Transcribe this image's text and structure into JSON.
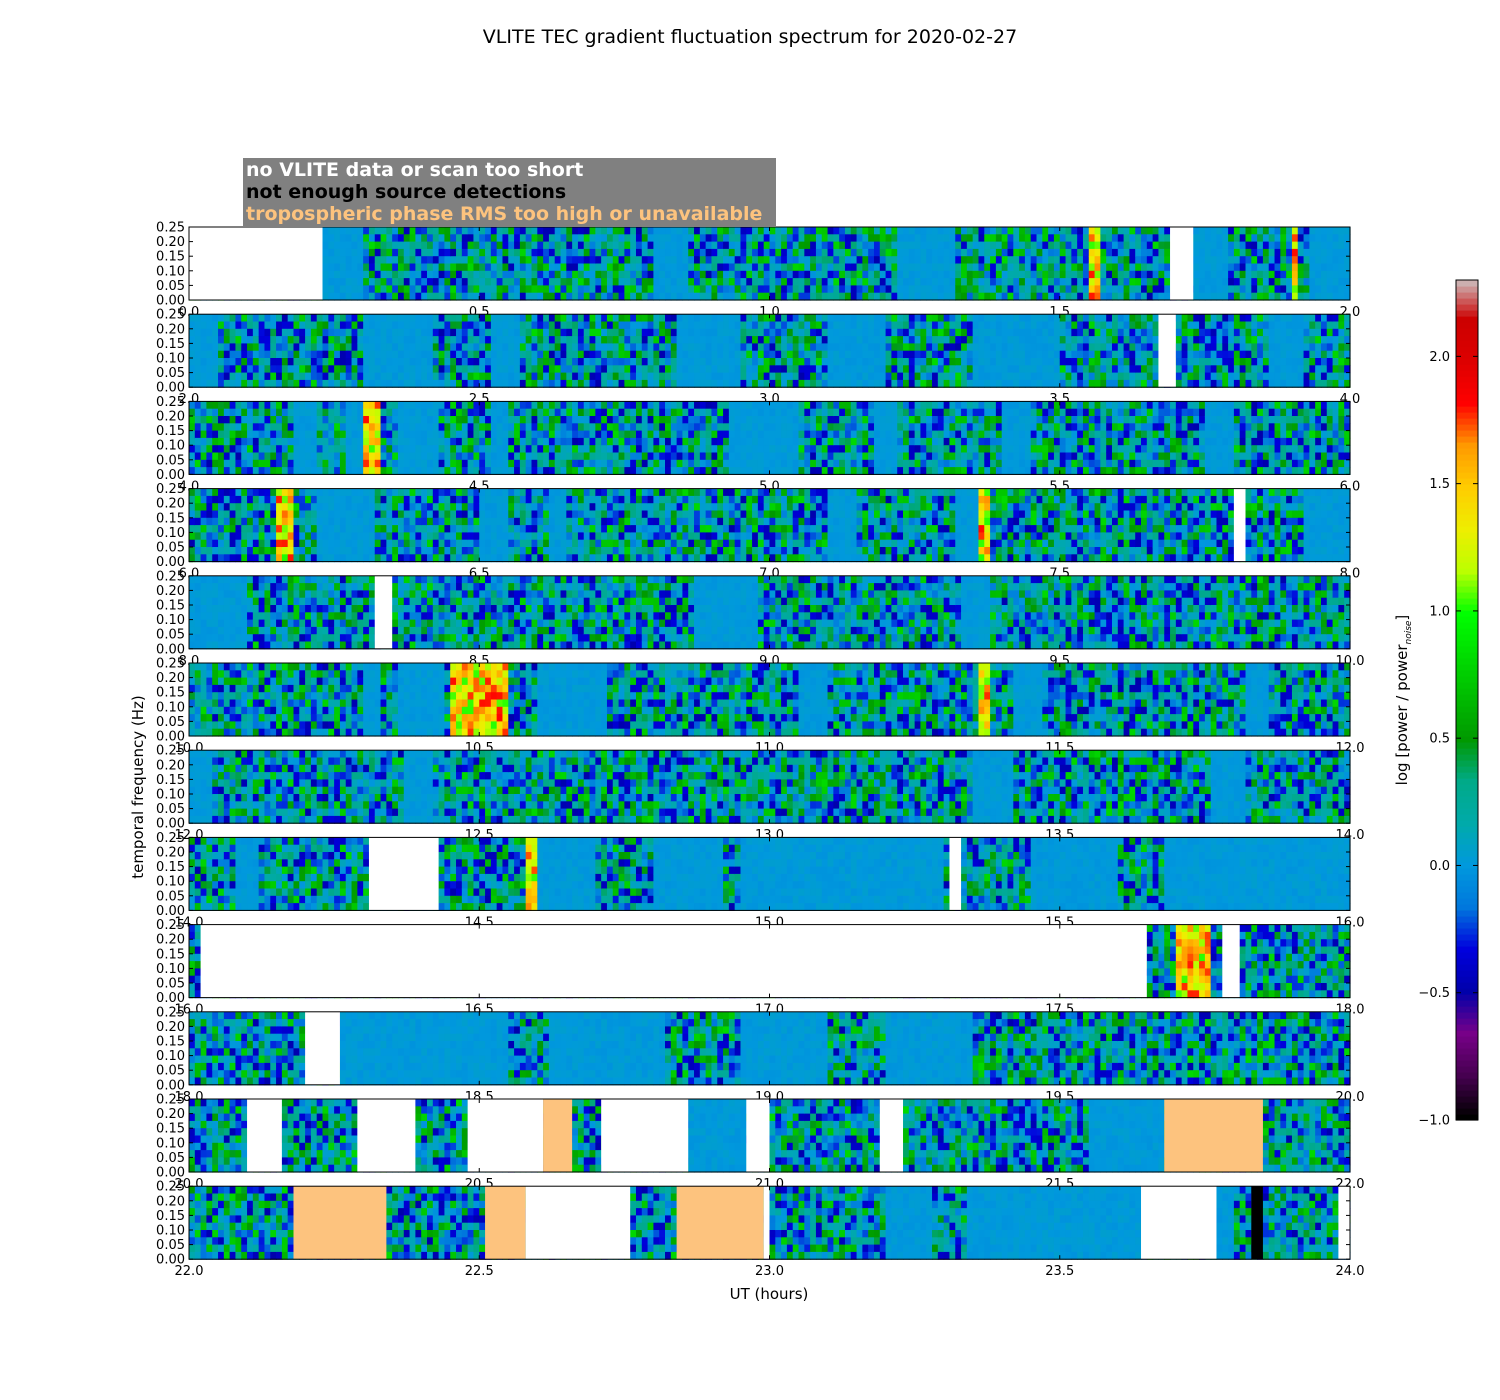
{
  "chart_data": {
    "type": "heatmap",
    "title": "VLITE TEC gradient fluctuation spectrum for 2020-02-27",
    "xlabel": "UT (hours)",
    "ylabel": "temporal frequency (Hz)",
    "colorbar_label": "log [power / power",
    "colorbar_label_sub": "noise",
    "colorbar_label_end": "]",
    "colorbar_ticks": [
      "-1.0",
      "-0.5",
      "0.0",
      "0.5",
      "1.0",
      "1.5",
      "2.0"
    ],
    "colorbar_range": [
      -1.0,
      2.3
    ],
    "colormap": "nipy_spectral",
    "y_tick_labels": [
      "0.00",
      "0.05",
      "0.10",
      "0.15",
      "0.20",
      "0.25"
    ],
    "ylim": [
      0,
      0.25
    ],
    "legend": [
      {
        "text": "no VLITE data or scan too short",
        "color": "#ffffff"
      },
      {
        "text": "not enough source detections",
        "color": "#000000"
      },
      {
        "text": "tropospheric phase RMS too high or unavailable",
        "color": "#fdc37e"
      }
    ],
    "legend_background": "#808080",
    "flag_colors": {
      "nodata": "#ffffff",
      "nodetect": "#000000",
      "tropo": "#fdc37e",
      "quiet": "#0a96d2"
    },
    "panels": [
      {
        "xlim": [
          0,
          2
        ],
        "x_tick_labels": [
          "0.0",
          "0.5",
          "1.0",
          "1.5",
          "2.0"
        ],
        "gaps": [
          {
            "start": 0.0,
            "end": 0.23,
            "flag": "nodata"
          },
          {
            "start": 1.69,
            "end": 1.73,
            "flag": "nodata"
          }
        ],
        "quiet": [
          [
            0.23,
            0.3
          ],
          [
            0.8,
            0.86
          ],
          [
            1.22,
            1.32
          ],
          [
            1.73,
            1.79
          ],
          [
            1.93,
            2.0
          ]
        ],
        "hot": [
          [
            1.55,
            1.57
          ],
          [
            1.9,
            1.91
          ]
        ]
      },
      {
        "xlim": [
          2,
          4
        ],
        "x_tick_labels": [
          "2.0",
          "2.5",
          "3.0",
          "3.5",
          "4.0"
        ],
        "gaps": [
          {
            "start": 3.67,
            "end": 3.7,
            "flag": "nodata"
          }
        ],
        "quiet": [
          [
            2.0,
            2.05
          ],
          [
            2.3,
            2.42
          ],
          [
            2.52,
            2.57
          ],
          [
            2.84,
            2.95
          ],
          [
            3.1,
            3.2
          ],
          [
            3.35,
            3.5
          ],
          [
            3.86,
            3.92
          ]
        ],
        "hot": []
      },
      {
        "xlim": [
          4,
          6
        ],
        "x_tick_labels": [
          "4.0",
          "4.5",
          "5.0",
          "5.5",
          "6.0"
        ],
        "gaps": [],
        "quiet": [
          [
            4.18,
            4.22
          ],
          [
            4.27,
            4.3
          ],
          [
            4.36,
            4.43
          ],
          [
            4.52,
            4.55
          ],
          [
            4.93,
            5.05
          ],
          [
            5.18,
            5.22
          ],
          [
            5.4,
            5.45
          ],
          [
            5.75,
            5.8
          ]
        ],
        "hot": [
          [
            4.3,
            4.33
          ]
        ]
      },
      {
        "xlim": [
          6,
          8
        ],
        "x_tick_labels": [
          "6.0",
          "6.5",
          "7.0",
          "7.5",
          "8.0"
        ],
        "gaps": [
          {
            "start": 7.8,
            "end": 7.82,
            "flag": "nodata"
          }
        ],
        "quiet": [
          [
            6.22,
            6.32
          ],
          [
            6.5,
            6.55
          ],
          [
            6.62,
            6.65
          ],
          [
            7.1,
            7.15
          ],
          [
            7.32,
            7.36
          ],
          [
            7.92,
            8.0
          ]
        ],
        "hot": [
          [
            6.15,
            6.18
          ],
          [
            7.36,
            7.38
          ]
        ]
      },
      {
        "xlim": [
          8,
          10
        ],
        "x_tick_labels": [
          "8.0",
          "8.5",
          "9.0",
          "9.5",
          "10.0"
        ],
        "gaps": [
          {
            "start": 8.32,
            "end": 8.35,
            "flag": "nodata"
          }
        ],
        "quiet": [
          [
            8.0,
            8.1
          ],
          [
            8.87,
            8.98
          ],
          [
            9.33,
            9.38
          ]
        ],
        "hot": []
      },
      {
        "xlim": [
          10,
          12
        ],
        "x_tick_labels": [
          "10.0",
          "10.5",
          "11.0",
          "11.5",
          "12.0"
        ],
        "gaps": [],
        "quiet": [
          [
            10.3,
            10.33
          ],
          [
            10.36,
            10.44
          ],
          [
            10.6,
            10.72
          ],
          [
            11.05,
            11.1
          ],
          [
            11.42,
            11.47
          ],
          [
            11.82,
            11.86
          ]
        ],
        "hot": [
          [
            10.45,
            10.55
          ],
          [
            11.36,
            11.38
          ]
        ]
      },
      {
        "xlim": [
          12,
          14
        ],
        "x_tick_labels": [
          "12.0",
          "12.5",
          "13.0",
          "13.5",
          "14.0"
        ],
        "gaps": [],
        "quiet": [
          [
            12.0,
            12.04
          ],
          [
            12.37,
            12.42
          ],
          [
            13.35,
            13.42
          ],
          [
            13.76,
            13.82
          ]
        ],
        "hot": []
      },
      {
        "xlim": [
          14,
          16
        ],
        "x_tick_labels": [
          "14.0",
          "14.5",
          "15.0",
          "15.5",
          "16.0"
        ],
        "gaps": [
          {
            "start": 14.31,
            "end": 14.43,
            "flag": "nodata"
          },
          {
            "start": 15.31,
            "end": 15.33,
            "flag": "nodata"
          }
        ],
        "quiet": [
          [
            14.08,
            14.12
          ],
          [
            14.6,
            14.7
          ],
          [
            14.8,
            14.92
          ],
          [
            14.95,
            15.3
          ],
          [
            15.45,
            15.6
          ],
          [
            15.68,
            16.0
          ]
        ],
        "hot": [
          [
            14.58,
            14.6
          ]
        ]
      },
      {
        "xlim": [
          16,
          18
        ],
        "x_tick_labels": [
          "16.0",
          "16.5",
          "17.0",
          "17.5",
          "18.0"
        ],
        "gaps": [
          {
            "start": 16.02,
            "end": 17.65,
            "flag": "nodata"
          },
          {
            "start": 17.78,
            "end": 17.81,
            "flag": "nodata"
          }
        ],
        "quiet": [],
        "hot": [
          [
            17.7,
            17.76
          ]
        ]
      },
      {
        "xlim": [
          18,
          20
        ],
        "x_tick_labels": [
          "18.0",
          "18.5",
          "19.0",
          "19.5",
          "20.0"
        ],
        "gaps": [
          {
            "start": 18.2,
            "end": 18.26,
            "flag": "nodata"
          }
        ],
        "quiet": [
          [
            18.26,
            18.55
          ],
          [
            18.62,
            18.82
          ],
          [
            18.95,
            19.1
          ],
          [
            19.2,
            19.35
          ]
        ],
        "hot": []
      },
      {
        "xlim": [
          20,
          22
        ],
        "x_tick_labels": [
          "20.0",
          "20.5",
          "21.0",
          "21.5",
          "22.0"
        ],
        "gaps": [
          {
            "start": 20.1,
            "end": 20.16,
            "flag": "nodata"
          },
          {
            "start": 20.29,
            "end": 20.39,
            "flag": "nodata"
          },
          {
            "start": 20.48,
            "end": 20.61,
            "flag": "nodata"
          },
          {
            "start": 20.61,
            "end": 20.66,
            "flag": "tropo"
          },
          {
            "start": 20.71,
            "end": 20.86,
            "flag": "nodata"
          },
          {
            "start": 20.96,
            "end": 21.0,
            "flag": "nodata"
          },
          {
            "start": 21.19,
            "end": 21.23,
            "flag": "nodata"
          },
          {
            "start": 21.68,
            "end": 21.85,
            "flag": "tropo"
          }
        ],
        "quiet": [
          [
            20.86,
            20.96
          ],
          [
            21.55,
            21.68
          ]
        ],
        "hot": []
      },
      {
        "xlim": [
          22,
          24
        ],
        "x_tick_labels": [
          "22.0",
          "22.5",
          "23.0",
          "23.5",
          "24.0"
        ],
        "gaps": [
          {
            "start": 22.18,
            "end": 22.34,
            "flag": "tropo"
          },
          {
            "start": 22.51,
            "end": 22.58,
            "flag": "tropo"
          },
          {
            "start": 22.58,
            "end": 22.76,
            "flag": "nodata"
          },
          {
            "start": 22.84,
            "end": 22.99,
            "flag": "tropo"
          },
          {
            "start": 22.99,
            "end": 23.0,
            "flag": "nodata"
          },
          {
            "start": 23.64,
            "end": 23.77,
            "flag": "nodata"
          },
          {
            "start": 23.83,
            "end": 23.85,
            "flag": "nodetect"
          },
          {
            "start": 23.98,
            "end": 24.0,
            "flag": "nodata"
          }
        ],
        "quiet": [
          [
            23.2,
            23.28
          ],
          [
            23.34,
            23.64
          ],
          [
            23.77,
            23.8
          ]
        ],
        "hot": []
      }
    ]
  }
}
